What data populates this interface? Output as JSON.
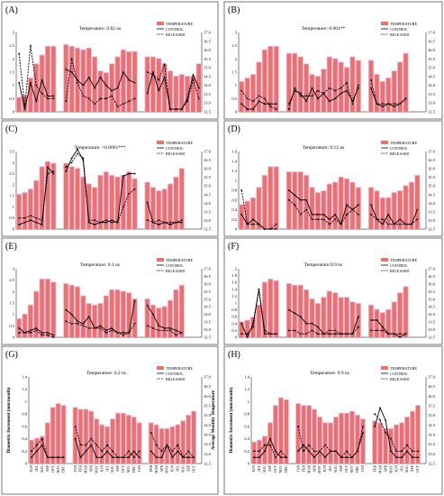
{
  "figure": {
    "months": [
      "JUN",
      "JUL",
      "AUG",
      "SEP",
      "OCT",
      "NOV",
      "DEC",
      "JAN",
      "FEB",
      "MAR",
      "APR",
      "MAY",
      "JUN",
      "JUL",
      "AUG",
      "SEP",
      "OCT",
      "NOV",
      "DEC",
      "JAN",
      "FEB",
      "MAR",
      "APR",
      "MAY",
      "JUN",
      "JUL",
      "AUG",
      "SEP",
      "OCT",
      "NOV"
    ],
    "y_left_label": "Diametric Increment (mm/month)",
    "y_right_label": "Average Monthly Temperature",
    "legend": [
      "TEMPERATURE",
      "CONTROL",
      "RELEASED"
    ],
    "colors": {
      "bar": "#E8736C",
      "bar_highlight": "#F2B8E6",
      "control": "#000000",
      "released": "#000000"
    }
  },
  "chart_data": [
    {
      "type": "bar+line",
      "panel": "(A)",
      "subtitle": "Temperature: 0.82 ns",
      "ylim_left": [
        0,
        3
      ],
      "yticks_left": [
        "0",
        "0.5",
        "1",
        "1.5",
        "2",
        "2.5",
        "3"
      ],
      "ylim_right": [
        12.5,
        17
      ],
      "yticks_right": [
        "12.5",
        "13.0",
        "13.5",
        "14.0",
        "14.5",
        "15.0",
        "15.5",
        "16.0",
        "16.5",
        "17.0"
      ],
      "temperature": [
        13.3,
        13.4,
        14.4,
        15.2,
        15.7,
        16.2,
        16.2,
        16.3,
        16.2,
        16.1,
        16.0,
        16.1,
        15.6,
        14.8,
        14.7,
        15.2,
        15.6,
        16.0,
        15.9,
        15.9,
        15.6,
        15.6,
        15.5,
        15.2,
        14.8,
        14.5,
        14.6,
        14.5,
        14.5,
        15.2
      ],
      "control": [
        1.1,
        0.1,
        1.1,
        0.4,
        1.2,
        0.6,
        0.6,
        1.6,
        1.5,
        1.2,
        1.0,
        1.3,
        0.9,
        1.3,
        1.0,
        0.8,
        0.9,
        1.5,
        1.2,
        1.1,
        0.7,
        1.5,
        0.8,
        1.3,
        0.1,
        0.1,
        0.1,
        0.5,
        1.4,
        0.9
      ],
      "released": [
        2.2,
        0.2,
        2.5,
        1.0,
        0.7,
        0.5,
        0.5,
        0.4,
        2.0,
        1.1,
        0.6,
        0.5,
        0.3,
        0.5,
        0.5,
        0.6,
        0.2,
        0.3,
        0.4,
        0.5,
        1.5,
        1.4,
        1.2,
        1.8,
        0.1,
        0.1,
        0.1,
        0.4,
        1.2,
        0.5
      ]
    },
    {
      "type": "bar+line",
      "panel": "(B)",
      "subtitle": "Temperature: 0.001**",
      "ylim_left": [
        0,
        3
      ],
      "yticks_left": [
        "0",
        "0.5",
        "1",
        "1.5",
        "2",
        "2.5",
        "3"
      ],
      "ylim_right": [
        12.5,
        17
      ],
      "yticks_right": [
        "12.5",
        "13.0",
        "13.5",
        "14.0",
        "14.5",
        "15.0",
        "15.5",
        "16.0",
        "16.5",
        "17.0"
      ],
      "temperature": [
        14.2,
        14.4,
        14.6,
        15.3,
        16.0,
        16.2,
        16.2,
        15.8,
        15.8,
        15.6,
        15.2,
        14.6,
        14.5,
        14.9,
        15.6,
        15.5,
        15.3,
        15.0,
        15.6,
        15.4,
        15.4,
        14.6,
        14.2,
        14.4,
        14.8,
        15.3,
        15.8,
        null,
        null,
        null
      ],
      "control": [
        0.3,
        0.1,
        0.1,
        0.4,
        0.3,
        0.3,
        0.3,
        0.3,
        0.8,
        0.7,
        0.4,
        0.9,
        0.5,
        0.7,
        0.4,
        0.5,
        0.7,
        0.8,
        0.4,
        0.9,
        0.9,
        0.3,
        0.2,
        0.3,
        0.2,
        0.3,
        0.5,
        null,
        null,
        null
      ],
      "released": [
        0.8,
        0.5,
        0.4,
        0.6,
        0.5,
        0.2,
        0.1,
        0.1,
        0.9,
        0.6,
        0.6,
        0.6,
        0.8,
        0.7,
        0.9,
        0.8,
        0.9,
        1.1,
        0.3,
        1.0,
        1.2,
        0.3,
        0.3,
        0.3,
        0.3,
        0.3,
        0.5,
        null,
        null,
        null
      ]
    },
    {
      "type": "bar+line",
      "panel": "(C)",
      "subtitle": "Temperature: <0.0001***",
      "ylim_left": [
        0,
        3.5
      ],
      "yticks_left": [
        "0",
        "0.5",
        "1",
        "1.5",
        "2",
        "2.5",
        "3",
        "3.5"
      ],
      "ylim_right": [
        12.5,
        17
      ],
      "yticks_right": [
        "12.5",
        "13.0",
        "13.5",
        "14.0",
        "14.5",
        "15.0",
        "15.5",
        "16.0",
        "16.5",
        "17.0"
      ],
      "temperature": [
        14.5,
        14.6,
        14.8,
        15.3,
        16.1,
        16.4,
        16.3,
        16.3,
        16.1,
        16.0,
        15.5,
        15.1,
        14.9,
        15.6,
        15.8,
        15.6,
        15.5,
        15.6,
        15.8,
        15.4,
        15.2,
        14.9,
        14.7,
        14.8,
        15.1,
        15.5,
        16.0,
        null,
        null,
        null
      ],
      "control": [
        0.2,
        0.3,
        0.4,
        0.3,
        0.2,
        2.8,
        2.5,
        2.6,
        3.2,
        3.6,
        3.1,
        0.3,
        0.2,
        0.3,
        0.3,
        0.4,
        0.3,
        2.4,
        2.5,
        2.5,
        1.2,
        0.3,
        0.2,
        0.3,
        0.2,
        0.3,
        0.3,
        null,
        null,
        null
      ],
      "released": [
        0.5,
        0.5,
        0.6,
        0.5,
        0.4,
        2.5,
        2.6,
        2.8,
        3.0,
        3.4,
        3.2,
        0.4,
        0.4,
        0.3,
        0.4,
        0.3,
        0.3,
        1.0,
        1.6,
        1.8,
        0.4,
        0.3,
        0.4,
        0.3,
        0.3,
        0.3,
        0.4,
        null,
        null,
        null
      ]
    },
    {
      "type": "bar+line",
      "panel": "(D)",
      "subtitle": "Temperature: 0.12 ns",
      "ylim_left": [
        0,
        1.6
      ],
      "yticks_left": [
        "0",
        "0.2",
        "0.4",
        "0.6",
        "0.8",
        "1",
        "1.2",
        "1.4",
        "1.6"
      ],
      "ylim_right": [
        12.5,
        17
      ],
      "yticks_right": [
        "12.5",
        "13.0",
        "13.5",
        "14.0",
        "14.5",
        "15.0",
        "15.5",
        "16.0",
        "16.5",
        "17.0"
      ],
      "temperature": [
        13.9,
        14.1,
        14.3,
        14.9,
        15.6,
        16.1,
        16.1,
        15.8,
        15.8,
        15.8,
        15.6,
        14.9,
        14.6,
        14.7,
        15.1,
        15.2,
        15.5,
        15.4,
        15.2,
        14.9,
        14.9,
        14.7,
        14.3,
        14.3,
        14.6,
        14.7,
        15.0,
        15.2,
        15.6,
        null
      ],
      "control": [
        0.3,
        0.1,
        0.2,
        0.1,
        0.0,
        0.0,
        0.0,
        0.8,
        0.7,
        0.6,
        0.6,
        0.3,
        0.3,
        0.3,
        0.2,
        0.3,
        0.1,
        0.5,
        0.4,
        0.5,
        0.5,
        0.2,
        0.1,
        0.3,
        0.1,
        0.2,
        0.1,
        0.1,
        0.4,
        null
      ],
      "released": [
        0.8,
        0.1,
        0.1,
        0.1,
        0.0,
        0.0,
        0.1,
        0.6,
        0.5,
        0.3,
        0.4,
        0.2,
        0.2,
        0.2,
        0.1,
        0.2,
        0.1,
        0.3,
        0.4,
        0.3,
        0.3,
        0.2,
        0.2,
        0.1,
        0.1,
        0.1,
        0.1,
        0.1,
        0.2,
        null
      ]
    },
    {
      "type": "bar+line",
      "panel": "(E)",
      "subtitle": "Temperature: 0.1 ns",
      "ylim_left": [
        0,
        3
      ],
      "yticks_left": [
        "0",
        "0.5",
        "1",
        "1.5",
        "2",
        "2.5",
        "3"
      ],
      "ylim_right": [
        12.5,
        17
      ],
      "yticks_right": [
        "12.5",
        "13.0",
        "13.5",
        "14.0",
        "14.5",
        "15.0",
        "15.5",
        "16.0",
        "16.5",
        "17.0"
      ],
      "temperature": [
        13.7,
        14.0,
        14.6,
        15.5,
        16.3,
        16.3,
        16.1,
        16.0,
        15.9,
        15.8,
        15.2,
        14.7,
        14.6,
        14.7,
        15.2,
        15.6,
        15.6,
        15.5,
        15.4,
        15.0,
        15.0,
        14.6,
        14.4,
        14.5,
        14.9,
        15.6,
        15.9,
        null,
        null,
        null
      ],
      "control": [
        0.4,
        0.2,
        0.3,
        0.4,
        0.2,
        0.2,
        0.1,
        1.2,
        1.0,
        0.7,
        0.6,
        0.9,
        0.4,
        0.5,
        0.3,
        0.4,
        0.2,
        0.2,
        0.2,
        1.6,
        1.4,
        1.0,
        0.5,
        0.4,
        0.4,
        0.3,
        0.2,
        null,
        null,
        null
      ],
      "released": [
        0.2,
        0.2,
        0.2,
        0.3,
        0.1,
        0.1,
        0.0,
        0.7,
        0.6,
        0.6,
        0.5,
        0.4,
        0.4,
        0.4,
        0.2,
        0.3,
        0.2,
        0.1,
        0.2,
        0.6,
        0.5,
        0.4,
        0.3,
        0.3,
        0.3,
        0.1,
        0.2,
        null,
        null,
        null
      ]
    },
    {
      "type": "bar+line",
      "panel": "(F)",
      "subtitle": "Temperature:0.9 ns",
      "ylim_left": [
        0,
        2
      ],
      "yticks_left": [
        "0",
        "0.2",
        "0.4",
        "0.6",
        "0.8",
        "1",
        "1.2",
        "1.4",
        "1.6",
        "1.8",
        "2"
      ],
      "ylim_right": [
        12.5,
        17
      ],
      "yticks_right": [
        "12.5",
        "13.0",
        "13.5",
        "14.0",
        "14.5",
        "15.0",
        "15.5",
        "16.0",
        "16.5",
        "17.0"
      ],
      "temperature": [
        13.5,
        13.6,
        13.8,
        14.6,
        16.1,
        16.3,
        16.2,
        16.0,
        15.9,
        15.9,
        15.6,
        15.0,
        14.7,
        15.1,
        15.5,
        15.4,
        15.1,
        15.1,
        14.8,
        14.7,
        14.6,
        14.3,
        14.1,
        14.3,
        14.8,
        15.4,
        15.8,
        null,
        null,
        null
      ],
      "control": [
        0.4,
        0.0,
        0.4,
        1.4,
        0.1,
        0.1,
        0.1,
        0.8,
        0.7,
        0.6,
        0.4,
        0.4,
        0.3,
        0.1,
        0.1,
        0.1,
        0.1,
        0.1,
        0.1,
        0.6,
        0.5,
        0.5,
        0.3,
        0.1,
        0.1,
        0.0,
        0.1,
        null,
        null,
        null
      ],
      "released": [
        0.1,
        0.1,
        0.3,
        1.4,
        0.2,
        0.1,
        0.1,
        0.2,
        0.2,
        0.1,
        0.1,
        0.2,
        0.1,
        0.1,
        0.2,
        0.2,
        0.1,
        0.1,
        0.1,
        0.3,
        0.2,
        0.2,
        0.2,
        0.1,
        0.1,
        0.1,
        0.1,
        null,
        null,
        null
      ]
    },
    {
      "type": "bar+line",
      "panel": "(G)",
      "subtitle": "Temperature: 0.2 ns",
      "ylim_left": [
        0,
        1.4
      ],
      "yticks_left": [
        "0",
        "0.2",
        "0.4",
        "0.6",
        "0.8",
        "1",
        "1.2",
        "1.4"
      ],
      "ylim_right": [
        12.5,
        17
      ],
      "yticks_right": [
        "12.5",
        "13.0",
        "13.5",
        "14.0",
        "14.5",
        "15.0",
        "15.5",
        "16.0",
        "16.5",
        "17.0"
      ],
      "temperature": [
        13.7,
        13.8,
        13.9,
        14.6,
        15.4,
        15.6,
        15.5,
        15.4,
        15.3,
        15.3,
        15.2,
        14.8,
        14.5,
        14.4,
        14.8,
        15.1,
        15.1,
        15.0,
        14.9,
        14.6,
        14.6,
        14.5,
        14.3,
        14.3,
        14.4,
        14.5,
        14.7,
        15.0,
        15.2,
        null
      ],
      "control": [
        0.1,
        0.2,
        0.3,
        0.1,
        0.1,
        0.1,
        0.1,
        0.4,
        0.1,
        0.2,
        0.3,
        0.1,
        0.1,
        0.2,
        0.1,
        0.1,
        0.1,
        0.1,
        0.2,
        0.1,
        0.2,
        0.1,
        0.1,
        0.3,
        0.1,
        0.2,
        0.1,
        0.1,
        0.1,
        null
      ],
      "released": [
        0.2,
        0.3,
        0.4,
        0.1,
        0.1,
        0.1,
        0.1,
        0.6,
        0.3,
        0.3,
        0.4,
        0.3,
        0.2,
        0.3,
        0.2,
        0.1,
        0.1,
        0.2,
        0.1,
        0.2,
        0.5,
        0.3,
        0.2,
        0.3,
        0.2,
        0.3,
        0.1,
        0.2,
        0.1,
        null
      ]
    },
    {
      "type": "bar+line",
      "panel": "(H)",
      "subtitle": "Temperature: 0.9 ns",
      "ylim_left": [
        0,
        1.4
      ],
      "yticks_left": [
        "0",
        "0.2",
        "0.4",
        "0.6",
        "0.8",
        "1",
        "1.2",
        "1.4"
      ],
      "ylim_right": [
        12.5,
        17
      ],
      "yticks_right": [
        "12.5",
        "13.0",
        "13.5",
        "14.0",
        "14.5",
        "15.0",
        "15.5",
        "16.0",
        "16.5",
        "17.0"
      ],
      "temperature": [
        13.6,
        13.7,
        13.9,
        14.6,
        15.5,
        15.9,
        15.8,
        15.6,
        15.5,
        15.5,
        15.3,
        14.9,
        14.6,
        14.6,
        14.9,
        15.1,
        15.1,
        15.2,
        15.0,
        14.8,
        14.7,
        14.6,
        14.3,
        14.3,
        14.5,
        14.6,
        14.9,
        15.2,
        15.5,
        null
      ],
      "control": [
        0.1,
        0.1,
        0.2,
        0.4,
        0.2,
        0.1,
        0.1,
        0.2,
        0.3,
        0.2,
        0.1,
        0.2,
        0.1,
        0.2,
        0.2,
        0.1,
        0.1,
        0.1,
        0.2,
        0.5,
        0.6,
        0.9,
        0.7,
        0.2,
        0.1,
        0.1,
        0.2,
        0.1,
        0.1,
        null
      ],
      "released": [
        0.2,
        0.2,
        0.3,
        0.3,
        0.1,
        0.2,
        0.1,
        0.6,
        0.2,
        0.3,
        0.2,
        0.2,
        0.3,
        0.2,
        0.2,
        0.1,
        0.2,
        0.1,
        0.2,
        0.6,
        0.8,
        0.7,
        0.5,
        0.4,
        0.2,
        0.2,
        0.3,
        0.2,
        0.2,
        null
      ]
    }
  ]
}
